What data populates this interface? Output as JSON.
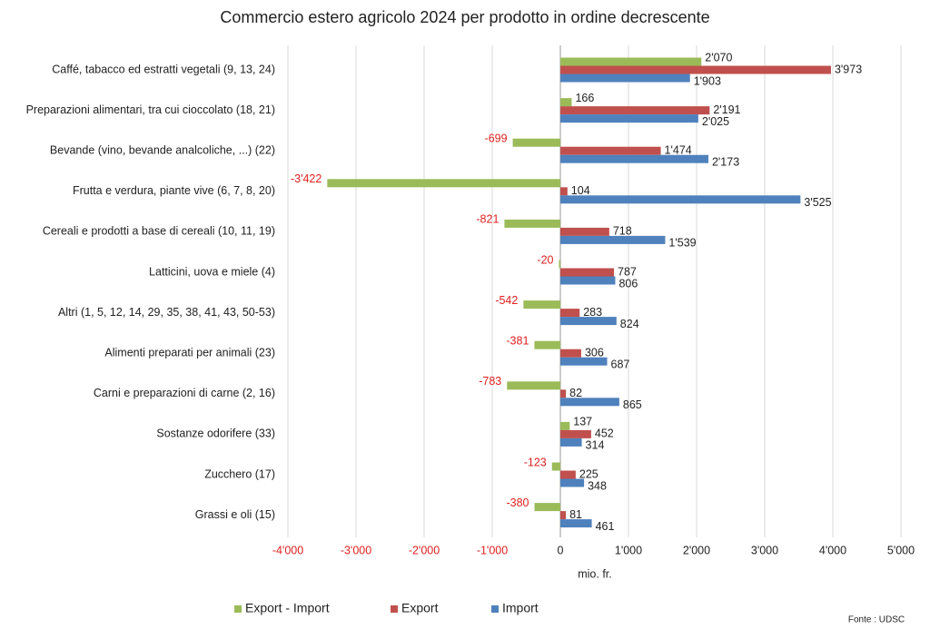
{
  "chart_data": {
    "type": "hbar",
    "title": "Commercio estero agricolo 2024 per prodotto in ordine decrescente",
    "x_label": "mio. fr.",
    "source": "Fonte : UDSC",
    "categories": [
      "Caffé, tabacco ed estratti vegetali (9, 13, 24)",
      "Preparazioni alimentari, tra cui cioccolato (18, 21)",
      "Bevande (vino, bevande analcoliche, ...) (22)",
      "Frutta e verdura, piante vive (6, 7, 8, 20)",
      "Cereali e prodotti a base di cereali (10, 11, 19)",
      "Latticini, uova e miele (4)",
      "Altri (1, 5, 12, 14, 29, 35, 38, 41, 43, 50-53)",
      "Alimenti preparati per animali (23)",
      "Carni e preparazioni di carne (2, 16)",
      "Sostanze odorifere (33)",
      "Zucchero (17)",
      "Grassi e oli (15)"
    ],
    "series": [
      {
        "name": "Export - Import",
        "color": "#9bbb59",
        "values": [
          2070,
          166,
          -699,
          -3422,
          -821,
          -20,
          -542,
          -381,
          -783,
          137,
          -123,
          -380
        ],
        "value_labels": [
          "2'070",
          "166",
          "-699",
          "-3'422",
          "-821",
          "-20",
          "-542",
          "-381",
          "-783",
          "137",
          "-123",
          "-380"
        ]
      },
      {
        "name": "Export",
        "color": "#c0504d",
        "values": [
          3973,
          2191,
          1474,
          104,
          718,
          787,
          283,
          306,
          82,
          452,
          225,
          81
        ],
        "value_labels": [
          "3'973",
          "2'191",
          "1'474",
          "104",
          "718",
          "787",
          "283",
          "306",
          "82",
          "452",
          "225",
          "81"
        ]
      },
      {
        "name": "Import",
        "color": "#4f81bd",
        "values": [
          1903,
          2025,
          2173,
          3525,
          1539,
          806,
          824,
          687,
          865,
          314,
          348,
          461
        ],
        "value_labels": [
          "1'903",
          "2'025",
          "2'173",
          "3'525",
          "1'539",
          "806",
          "824",
          "687",
          "865",
          "314",
          "348",
          "461"
        ]
      }
    ],
    "xlim": [
      -4000,
      5000
    ],
    "xticks": [
      {
        "value": -4000,
        "label": "-4'000"
      },
      {
        "value": -3000,
        "label": "-3'000"
      },
      {
        "value": -2000,
        "label": "-2'000"
      },
      {
        "value": -1000,
        "label": "-1'000"
      },
      0,
      {
        "value": 1000,
        "label": "1'000"
      },
      {
        "value": 2000,
        "label": "2'000"
      },
      {
        "value": 3000,
        "label": "3'000"
      },
      {
        "value": 4000,
        "label": "4'000"
      },
      {
        "value": 5000,
        "label": "5'000"
      }
    ],
    "grid": true,
    "legend": "bottom"
  }
}
